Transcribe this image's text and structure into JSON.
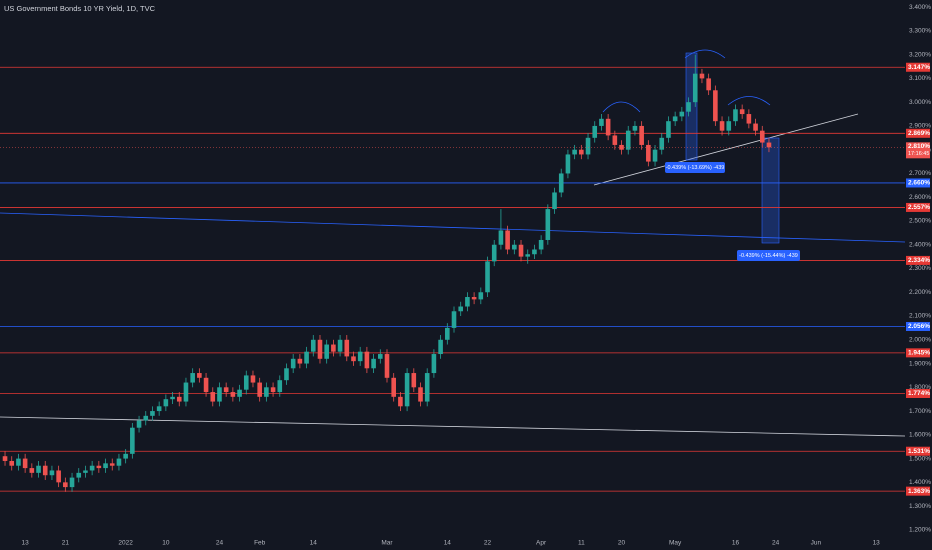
{
  "chart_data": {
    "type": "candlestick",
    "title": "US Government Bonds 10 YR Yield, 1D, TVC",
    "up_color": "#26a69a",
    "down_color": "#ef5350",
    "xlim": [
      -0.75,
      134.3
    ],
    "xticks": [
      {
        "value": 3,
        "label": "13"
      },
      {
        "value": 9,
        "label": "21"
      },
      {
        "value": 18,
        "label": "2022"
      },
      {
        "value": 24,
        "label": "10"
      },
      {
        "value": 32,
        "label": "24"
      },
      {
        "value": 38,
        "label": "Feb"
      },
      {
        "value": 46,
        "label": "14"
      },
      {
        "value": 57,
        "label": "Mar"
      },
      {
        "value": 66,
        "label": "14"
      },
      {
        "value": 72,
        "label": "22"
      },
      {
        "value": 80,
        "label": "Apr"
      },
      {
        "value": 86,
        "label": "11"
      },
      {
        "value": 92,
        "label": "20"
      },
      {
        "value": 100,
        "label": "May"
      },
      {
        "value": 109,
        "label": "16"
      },
      {
        "value": 115,
        "label": "24"
      },
      {
        "value": 121,
        "label": "Jun"
      },
      {
        "value": 130,
        "label": "13"
      }
    ],
    "ylim": [
      1.17,
      3.43
    ],
    "yticks": [
      {
        "value": 3.4,
        "label": "3.400%"
      },
      {
        "value": 3.3,
        "label": "3.300%"
      },
      {
        "value": 3.2,
        "label": "3.200%"
      },
      {
        "value": 3.1,
        "label": "3.100%"
      },
      {
        "value": 3.0,
        "label": "3.000%"
      },
      {
        "value": 2.9,
        "label": "2.900%"
      },
      {
        "value": 2.8,
        "label": "2.800%"
      },
      {
        "value": 2.7,
        "label": "2.700%"
      },
      {
        "value": 2.6,
        "label": "2.600%"
      },
      {
        "value": 2.5,
        "label": "2.500%"
      },
      {
        "value": 2.4,
        "label": "2.400%"
      },
      {
        "value": 2.3,
        "label": "2.300%"
      },
      {
        "value": 2.2,
        "label": "2.200%"
      },
      {
        "value": 2.1,
        "label": "2.100%"
      },
      {
        "value": 2.0,
        "label": "2.000%"
      },
      {
        "value": 1.9,
        "label": "1.900%"
      },
      {
        "value": 1.8,
        "label": "1.800%"
      },
      {
        "value": 1.7,
        "label": "1.700%"
      },
      {
        "value": 1.6,
        "label": "1.600%"
      },
      {
        "value": 1.5,
        "label": "1.500%"
      },
      {
        "value": 1.4,
        "label": "1.400%"
      },
      {
        "value": 1.3,
        "label": "1.300%"
      },
      {
        "value": 1.2,
        "label": "1.200%"
      }
    ],
    "open": [
      1.51,
      1.49,
      1.47,
      1.5,
      1.46,
      1.44,
      1.47,
      1.43,
      1.45,
      1.4,
      1.38,
      1.42,
      1.44,
      1.45,
      1.47,
      1.46,
      1.48,
      1.47,
      1.5,
      1.52,
      1.63,
      1.66,
      1.68,
      1.7,
      1.72,
      1.75,
      1.76,
      1.74,
      1.82,
      1.86,
      1.84,
      1.78,
      1.74,
      1.8,
      1.78,
      1.76,
      1.79,
      1.85,
      1.82,
      1.76,
      1.8,
      1.78,
      1.83,
      1.88,
      1.92,
      1.9,
      1.95,
      2.0,
      1.92,
      1.98,
      1.95,
      2.0,
      1.93,
      1.91,
      1.95,
      1.88,
      1.92,
      1.94,
      1.84,
      1.76,
      1.72,
      1.86,
      1.8,
      1.74,
      1.86,
      1.94,
      2.0,
      2.05,
      2.12,
      2.14,
      2.18,
      2.17,
      2.2,
      2.33,
      2.4,
      2.46,
      2.38,
      2.4,
      2.35,
      2.36,
      2.38,
      2.42,
      2.55,
      2.62,
      2.7,
      2.78,
      2.8,
      2.78,
      2.85,
      2.9,
      2.93,
      2.86,
      2.82,
      2.8,
      2.88,
      2.9,
      2.82,
      2.75,
      2.8,
      2.85,
      2.92,
      2.94,
      2.96,
      3.0,
      3.12,
      3.1,
      3.05,
      2.92,
      2.88,
      2.92,
      2.97,
      2.95,
      2.91,
      2.88,
      2.83
    ],
    "high": [
      1.53,
      1.51,
      1.52,
      1.52,
      1.48,
      1.49,
      1.49,
      1.47,
      1.47,
      1.42,
      1.44,
      1.46,
      1.47,
      1.49,
      1.49,
      1.5,
      1.5,
      1.52,
      1.54,
      1.65,
      1.68,
      1.7,
      1.72,
      1.74,
      1.77,
      1.78,
      1.78,
      1.84,
      1.88,
      1.88,
      1.86,
      1.8,
      1.82,
      1.82,
      1.8,
      1.81,
      1.87,
      1.87,
      1.84,
      1.82,
      1.82,
      1.85,
      1.9,
      1.94,
      1.94,
      1.97,
      2.02,
      2.02,
      2.0,
      2.0,
      2.02,
      2.02,
      1.95,
      1.97,
      1.97,
      1.94,
      1.96,
      1.96,
      1.86,
      1.78,
      1.88,
      1.88,
      1.82,
      1.88,
      1.96,
      2.02,
      2.07,
      2.14,
      2.16,
      2.2,
      2.2,
      2.22,
      2.35,
      2.42,
      2.55,
      2.48,
      2.42,
      2.42,
      2.38,
      2.4,
      2.44,
      2.57,
      2.64,
      2.72,
      2.8,
      2.82,
      2.82,
      2.87,
      2.92,
      2.95,
      2.95,
      2.88,
      2.84,
      2.9,
      2.92,
      2.92,
      2.84,
      2.82,
      2.87,
      2.94,
      2.96,
      2.98,
      3.02,
      3.2,
      3.14,
      3.12,
      3.07,
      2.94,
      2.94,
      2.99,
      2.99,
      2.97,
      2.93,
      2.9,
      2.85
    ],
    "low": [
      1.47,
      1.45,
      1.45,
      1.44,
      1.42,
      1.42,
      1.41,
      1.41,
      1.38,
      1.36,
      1.36,
      1.4,
      1.42,
      1.43,
      1.44,
      1.44,
      1.45,
      1.45,
      1.48,
      1.5,
      1.61,
      1.64,
      1.66,
      1.68,
      1.7,
      1.73,
      1.72,
      1.72,
      1.8,
      1.82,
      1.76,
      1.72,
      1.72,
      1.76,
      1.74,
      1.74,
      1.77,
      1.8,
      1.74,
      1.74,
      1.76,
      1.76,
      1.81,
      1.86,
      1.88,
      1.88,
      1.93,
      1.9,
      1.9,
      1.93,
      1.93,
      1.91,
      1.89,
      1.89,
      1.86,
      1.86,
      1.9,
      1.82,
      1.74,
      1.7,
      1.7,
      1.78,
      1.72,
      1.72,
      1.84,
      1.92,
      1.98,
      2.03,
      2.1,
      2.12,
      2.15,
      2.15,
      2.18,
      2.31,
      2.38,
      2.36,
      2.36,
      2.33,
      2.32,
      2.34,
      2.36,
      2.4,
      2.53,
      2.6,
      2.68,
      2.76,
      2.76,
      2.76,
      2.83,
      2.88,
      2.84,
      2.8,
      2.78,
      2.78,
      2.86,
      2.8,
      2.73,
      2.73,
      2.78,
      2.83,
      2.9,
      2.92,
      2.94,
      2.98,
      3.08,
      3.03,
      2.9,
      2.86,
      2.86,
      2.9,
      2.93,
      2.89,
      2.86,
      2.81,
      2.79
    ],
    "close": [
      1.49,
      1.47,
      1.5,
      1.46,
      1.44,
      1.47,
      1.43,
      1.45,
      1.4,
      1.38,
      1.42,
      1.44,
      1.45,
      1.47,
      1.46,
      1.48,
      1.47,
      1.5,
      1.52,
      1.63,
      1.66,
      1.68,
      1.7,
      1.72,
      1.75,
      1.76,
      1.74,
      1.82,
      1.86,
      1.84,
      1.78,
      1.74,
      1.8,
      1.78,
      1.76,
      1.79,
      1.85,
      1.82,
      1.76,
      1.8,
      1.78,
      1.83,
      1.88,
      1.92,
      1.9,
      1.95,
      2.0,
      1.92,
      1.98,
      1.95,
      2.0,
      1.93,
      1.91,
      1.95,
      1.88,
      1.92,
      1.94,
      1.84,
      1.76,
      1.72,
      1.86,
      1.8,
      1.74,
      1.86,
      1.94,
      2.0,
      2.05,
      2.12,
      2.14,
      2.18,
      2.17,
      2.2,
      2.33,
      2.4,
      2.46,
      2.38,
      2.4,
      2.35,
      2.36,
      2.38,
      2.42,
      2.55,
      2.62,
      2.7,
      2.78,
      2.8,
      2.78,
      2.85,
      2.9,
      2.93,
      2.86,
      2.82,
      2.8,
      2.88,
      2.9,
      2.82,
      2.75,
      2.8,
      2.85,
      2.92,
      2.94,
      2.96,
      3.0,
      3.12,
      3.1,
      3.05,
      2.92,
      2.88,
      2.92,
      2.97,
      2.95,
      2.91,
      2.88,
      2.83,
      2.81
    ],
    "levels": [
      {
        "value": 3.147,
        "label": "3.147%",
        "color": "#e53935"
      },
      {
        "value": 2.869,
        "label": "2.869%",
        "color": "#e53935"
      },
      {
        "value": 2.66,
        "label": "2.660%",
        "color": "#2962ff"
      },
      {
        "value": 2.557,
        "label": "2.557%",
        "color": "#e53935"
      },
      {
        "value": 2.334,
        "label": "2.334%",
        "color": "#e53935"
      },
      {
        "value": 2.056,
        "label": "2.056%",
        "color": "#2962ff"
      },
      {
        "value": 1.945,
        "label": "1.945%",
        "color": "#e53935"
      },
      {
        "value": 1.774,
        "label": "1.774%",
        "color": "#e53935"
      },
      {
        "value": 1.531,
        "label": "1.531%",
        "color": "#e53935"
      },
      {
        "value": 1.363,
        "label": "1.363%",
        "color": "#e53935"
      }
    ],
    "last_price": {
      "value": 2.81,
      "label": "2.810%",
      "countdown": "17:16:45",
      "color": "#ef5350"
    },
    "annotations": [
      "-0.439% (-13.69%) -439",
      "-0.439% (-15.44%) -439"
    ]
  }
}
